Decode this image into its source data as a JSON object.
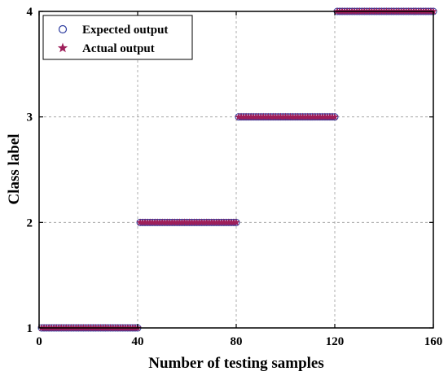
{
  "chart_data": {
    "type": "scatter",
    "xlabel": "Number of testing samples",
    "ylabel": "Class label",
    "xlim": [
      0,
      160
    ],
    "ylim": [
      1,
      4
    ],
    "x_ticks": [
      "0",
      "40",
      "80",
      "120",
      "160"
    ],
    "y_ticks": [
      "1",
      "2",
      "3",
      "4"
    ],
    "grid": true,
    "legend_position": "top-left",
    "colors": {
      "expected": "#2b3a9e",
      "actual": "#9e1f5a"
    },
    "series": [
      {
        "name": "Expected output",
        "marker": "circle",
        "segments": [
          {
            "x_start": 1,
            "x_end": 40,
            "y": 1
          },
          {
            "x_start": 41,
            "x_end": 80,
            "y": 2
          },
          {
            "x_start": 81,
            "x_end": 120,
            "y": 3
          },
          {
            "x_start": 121,
            "x_end": 160,
            "y": 4
          }
        ]
      },
      {
        "name": "Actual output",
        "marker": "star",
        "segments": [
          {
            "x_start": 1,
            "x_end": 40,
            "y": 1
          },
          {
            "x_start": 41,
            "x_end": 80,
            "y": 2
          },
          {
            "x_start": 81,
            "x_end": 120,
            "y": 3
          },
          {
            "x_start": 121,
            "x_end": 160,
            "y": 4
          }
        ]
      }
    ]
  }
}
